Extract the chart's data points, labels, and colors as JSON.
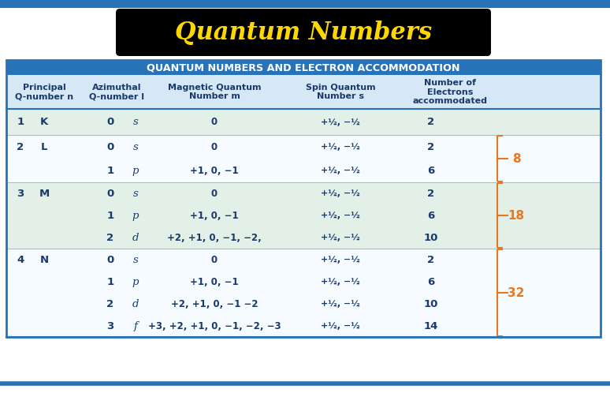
{
  "title": "Quantum Numbers",
  "title_bg": "#000000",
  "title_color": "#FFD700",
  "header_row_text": "QUANTUM NUMBERS AND ELECTRON ACCOMMODATION",
  "header_row_bg": "#2872B8",
  "header_row_color": "#FFFFFF",
  "col_headers": [
    "Principal\nQ-number n",
    "Azimuthal\nQ-number l",
    "Magnetic Quantum\nNumber m",
    "Spin Quantum\nNumber s",
    "Number of\nElectrons\naccommodated"
  ],
  "col_header_bg": "#D6E8F5",
  "col_header_color": "#1A3A6B",
  "row_bg_odd": "#E2F0E8",
  "row_bg_even": "#F5FBFF",
  "border_color": "#2872B8",
  "text_color": "#1A3A6B",
  "brace_color": "#E87722",
  "figure_bg": "#FFFFFF",
  "rows": [
    {
      "n": "1",
      "shell": "K",
      "l": "0",
      "subshell": "s",
      "m": "0",
      "s_spin": "+½, −½",
      "elec": "2",
      "group": 1
    },
    {
      "n": "2",
      "shell": "L",
      "l": "0",
      "subshell": "s",
      "m": "0",
      "s_spin": "+½, −½",
      "elec": "2",
      "group": 2
    },
    {
      "n": "",
      "shell": "",
      "l": "1",
      "subshell": "p",
      "m": "+1, 0, −1",
      "s_spin": "+½, −½",
      "elec": "6",
      "group": 2
    },
    {
      "n": "3",
      "shell": "M",
      "l": "0",
      "subshell": "s",
      "m": "0",
      "s_spin": "+½, −½",
      "elec": "2",
      "group": 3
    },
    {
      "n": "",
      "shell": "",
      "l": "1",
      "subshell": "p",
      "m": "+1, 0, −1",
      "s_spin": "+½, −½",
      "elec": "6",
      "group": 3
    },
    {
      "n": "",
      "shell": "",
      "l": "2",
      "subshell": "d",
      "m": "+2, +1, 0, −1, −2,",
      "s_spin": "+½, −½",
      "elec": "10",
      "group": 3
    },
    {
      "n": "4",
      "shell": "N",
      "l": "0",
      "subshell": "s",
      "m": "0",
      "s_spin": "+½, −½",
      "elec": "2",
      "group": 4
    },
    {
      "n": "",
      "shell": "",
      "l": "1",
      "subshell": "p",
      "m": "+1, 0, −1",
      "s_spin": "+½, −½",
      "elec": "6",
      "group": 4
    },
    {
      "n": "",
      "shell": "",
      "l": "2",
      "subshell": "d",
      "m": "+2, +1, 0, −1 −2",
      "s_spin": "+½, −½",
      "elec": "10",
      "group": 4
    },
    {
      "n": "",
      "shell": "",
      "l": "3",
      "subshell": "f",
      "m": "+3, +2, +1, 0, −1, −2, −3",
      "s_spin": "+½, −½",
      "elec": "14",
      "group": 4
    }
  ],
  "groups": [
    {
      "rows": [
        0,
        0
      ],
      "val": null
    },
    {
      "rows": [
        1,
        2
      ],
      "val": "8"
    },
    {
      "rows": [
        3,
        5
      ],
      "val": "18"
    },
    {
      "rows": [
        6,
        9
      ],
      "val": "32"
    }
  ]
}
